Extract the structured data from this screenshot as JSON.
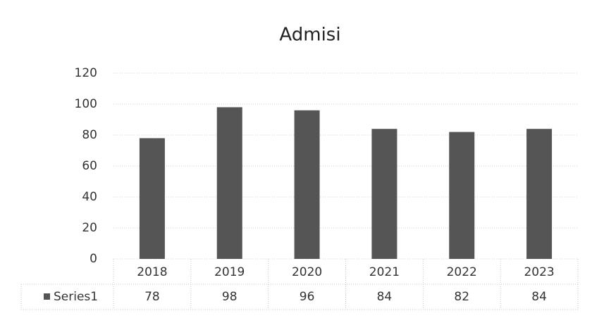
{
  "chart_data": {
    "type": "bar",
    "title": "Admisi",
    "categories": [
      "2018",
      "2019",
      "2020",
      "2021",
      "2022",
      "2023"
    ],
    "series": [
      {
        "name": "Series1",
        "color": "#555555",
        "values": [
          78,
          98,
          96,
          84,
          82,
          84
        ]
      }
    ],
    "ylim": [
      0,
      120
    ],
    "yticks": [
      0,
      20,
      40,
      60,
      80,
      100,
      120
    ],
    "grid": true
  }
}
